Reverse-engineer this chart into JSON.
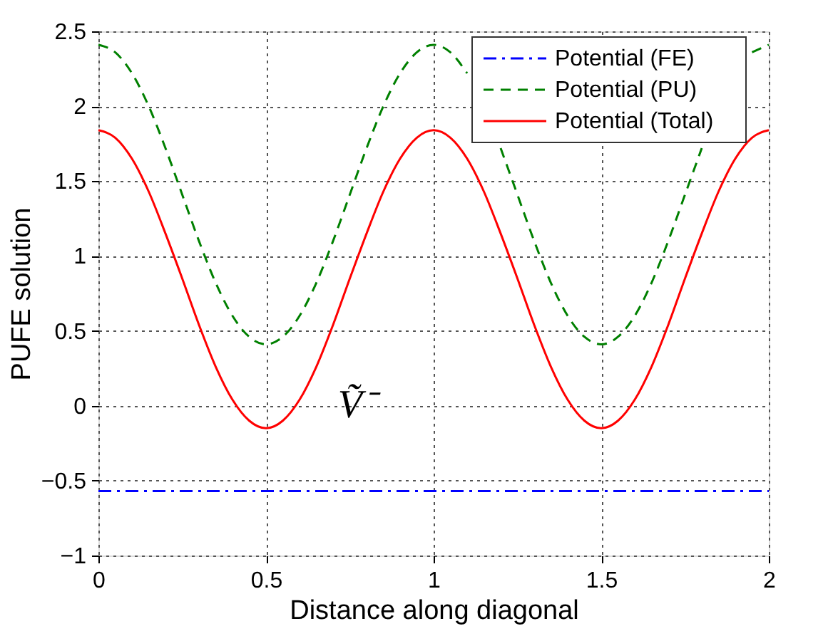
{
  "chart_data": {
    "type": "line",
    "xlabel": "Distance along diagonal",
    "ylabel": "PUFE solution",
    "x": [
      0,
      0.05,
      0.1,
      0.15,
      0.2,
      0.25,
      0.3,
      0.35,
      0.4,
      0.45,
      0.5,
      0.55,
      0.6,
      0.65,
      0.7,
      0.75,
      0.8,
      0.85,
      0.9,
      0.95,
      1,
      1.05,
      1.1,
      1.15,
      1.2,
      1.25,
      1.3,
      1.35,
      1.4,
      1.45,
      1.5,
      1.55,
      1.6,
      1.65,
      1.7,
      1.75,
      1.8,
      1.85,
      1.9,
      1.95,
      2
    ],
    "series": [
      {
        "name": "Potential (FE)",
        "color": "#0000ff",
        "line_style": "dashdot",
        "values": [
          -0.57,
          -0.57,
          -0.57,
          -0.57,
          -0.57,
          -0.57,
          -0.57,
          -0.57,
          -0.57,
          -0.57,
          -0.57,
          -0.57,
          -0.57,
          -0.57,
          -0.57,
          -0.57,
          -0.57,
          -0.57,
          -0.57,
          -0.57,
          -0.57,
          -0.57,
          -0.57,
          -0.57,
          -0.57,
          -0.57,
          -0.57,
          -0.57,
          -0.57,
          -0.57,
          -0.57,
          -0.57,
          -0.57,
          -0.57,
          -0.57,
          -0.57,
          -0.57,
          -0.57,
          -0.57,
          -0.57,
          -0.57
        ]
      },
      {
        "name": "Potential (PU)",
        "color": "#008000",
        "line_style": "dashed",
        "values": [
          2.41,
          2.36,
          2.22,
          2.0,
          1.72,
          1.41,
          1.1,
          0.82,
          0.6,
          0.46,
          0.41,
          0.46,
          0.6,
          0.82,
          1.1,
          1.41,
          1.72,
          2.0,
          2.22,
          2.36,
          2.41,
          2.36,
          2.22,
          null,
          1.72,
          1.41,
          1.1,
          0.82,
          0.6,
          0.46,
          0.41,
          0.46,
          0.6,
          0.82,
          1.1,
          1.41,
          1.72,
          null,
          null,
          2.36,
          2.41
        ]
      },
      {
        "name": "Potential (Total)",
        "color": "#ff0000",
        "line_style": "solid",
        "values": [
          1.84,
          1.79,
          1.65,
          1.43,
          1.15,
          0.85,
          0.54,
          0.26,
          0.04,
          -0.1,
          -0.15,
          -0.1,
          0.04,
          0.26,
          0.54,
          0.85,
          1.15,
          1.43,
          1.65,
          1.79,
          1.84,
          1.79,
          1.65,
          1.43,
          1.15,
          0.85,
          0.54,
          0.26,
          0.04,
          -0.1,
          -0.15,
          -0.1,
          0.04,
          0.26,
          0.54,
          0.85,
          1.15,
          1.43,
          1.65,
          1.79,
          1.84
        ]
      }
    ],
    "annotations": [
      "Ṽ⁻"
    ],
    "xlim": [
      0,
      2
    ],
    "xticks": [
      0,
      0.5,
      1,
      1.5,
      2
    ],
    "ylim": [
      -1,
      2.5
    ],
    "yticks": [
      -1,
      -0.5,
      0,
      0.5,
      1,
      1.5,
      2,
      2.5
    ],
    "grid": true,
    "legend": "top right",
    "marker": "none"
  }
}
